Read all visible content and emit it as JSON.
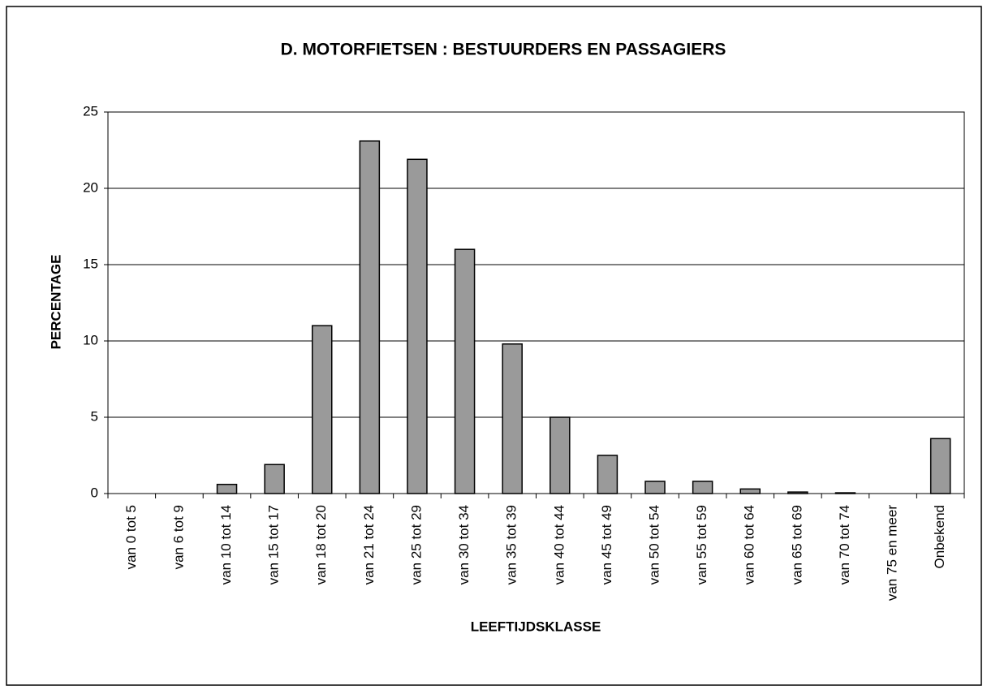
{
  "chart_data": {
    "type": "bar",
    "title": "D. MOTORFIETSEN : BESTUURDERS EN PASSAGIERS",
    "x_label": "LEEFTIJDSKLASSE",
    "y_label": "PERCENTAGE",
    "categories": [
      "van 0 tot 5",
      "van 6 tot 9",
      "van 10 tot 14",
      "van 15 tot 17",
      "van 18 tot 20",
      "van 21 tot 24",
      "van 25 tot 29",
      "van 30 tot 34",
      "van 35 tot 39",
      "van 40 tot 44",
      "van 45 tot 49",
      "van 50 tot 54",
      "van 55 tot 59",
      "van 60 tot 64",
      "van 65 tot 69",
      "van 70 tot 74",
      "van 75 en meer",
      "Onbekend"
    ],
    "values": [
      0,
      0,
      0.6,
      1.9,
      11,
      23.1,
      21.9,
      16,
      9.8,
      5,
      2.5,
      0.8,
      0.8,
      0.3,
      0.1,
      0.05,
      0,
      3.6
    ],
    "color": "#9a9a9a",
    "ylim": [
      0,
      25
    ],
    "yticks": [
      0,
      5,
      10,
      15,
      20,
      25
    ],
    "grid": true
  }
}
